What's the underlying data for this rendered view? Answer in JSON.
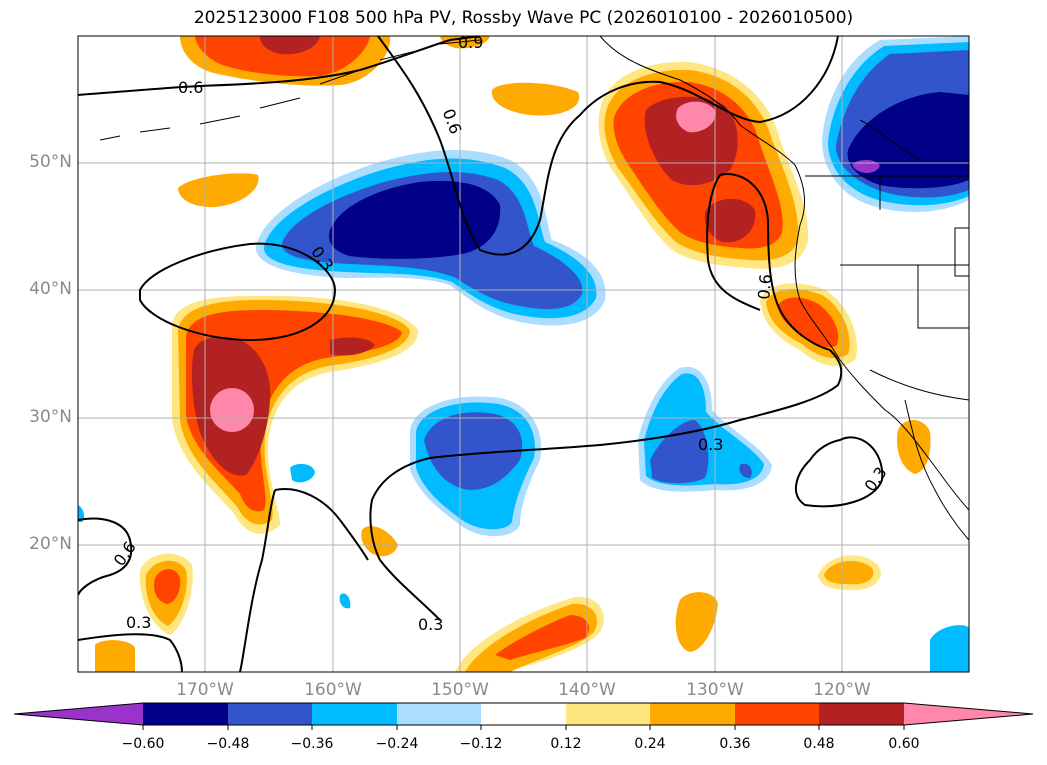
{
  "title": "2025123000 F108 500 hPa PV, Rossby Wave PC (2026010100 - 2026010500)",
  "latitude_labels": [
    "50°N",
    "40°N",
    "30°N",
    "20°N"
  ],
  "longitude_labels": [
    "170°W",
    "160°W",
    "150°W",
    "140°W",
    "130°W",
    "120°W"
  ],
  "contour_labels": [
    "0.9",
    "0.6",
    "0.6",
    "0.3",
    "0.6",
    "0.3",
    "0.3",
    "0.6",
    "0.3",
    "0.3"
  ],
  "colorbar": {
    "ticks": [
      "−0.60",
      "−0.48",
      "−0.36",
      "−0.24",
      "−0.12",
      "0.12",
      "0.24",
      "0.36",
      "0.48",
      "0.60"
    ],
    "colors": [
      "#9933cc",
      "#000088",
      "#3355cc",
      "#00bbff",
      "#aaddff",
      "#ffffff",
      "#ffe680",
      "#ffaa00",
      "#ff4400",
      "#b22222",
      "#ff88aa",
      "#ff88aa"
    ]
  }
}
